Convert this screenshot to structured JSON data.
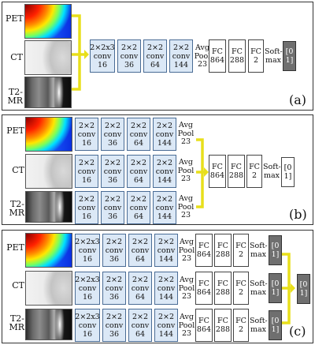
{
  "modalities": {
    "pet": "PET",
    "ct": "CT",
    "mr": "T2-\nMR"
  },
  "conv": {
    "c233_16": "2×2x3\nconv\n16",
    "c22_16": "2×2\nconv\n16",
    "c22_36": "2×2\nconv\n36",
    "c22_64": "2×2\nconv\n64",
    "c22_144": "2×2\nconv\n144"
  },
  "avgpool": "Avg\nPool\n23",
  "fc864": "FC\n864",
  "fc288": "FC\n288",
  "fc2": "FC\n2",
  "softmax": "Soft-\nmax",
  "output": "[0\n1]",
  "panel_labels": {
    "a": "(a)",
    "b": "(b)",
    "c": "(c)"
  },
  "colors": {
    "conv_fill": "#dbe8f6",
    "conv_border": "#4a6c95",
    "arrow": "#e8df1b",
    "output_fill": "#6f6f6f"
  }
}
